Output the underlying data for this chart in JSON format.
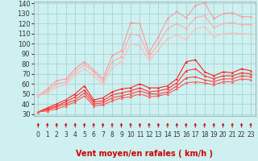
{
  "background_color": "#cff0f0",
  "grid_color": "#aad8d8",
  "xlabel": "Vent moyen/en rafales ( km/h )",
  "ylim": [
    28,
    142
  ],
  "xlim": [
    -0.5,
    23.5
  ],
  "yticks": [
    30,
    40,
    50,
    60,
    70,
    80,
    90,
    100,
    110,
    120,
    130,
    140
  ],
  "xticks": [
    0,
    1,
    2,
    3,
    4,
    5,
    6,
    7,
    8,
    9,
    10,
    11,
    12,
    13,
    14,
    15,
    16,
    17,
    18,
    19,
    20,
    21,
    22,
    23
  ],
  "x": [
    0,
    1,
    2,
    3,
    4,
    5,
    6,
    7,
    8,
    9,
    10,
    11,
    12,
    13,
    14,
    15,
    16,
    17,
    18,
    19,
    20,
    21,
    22,
    23
  ],
  "line1_color": "#ff9999",
  "line1_y": [
    48,
    55,
    63,
    65,
    75,
    82,
    74,
    65,
    88,
    93,
    121,
    120,
    91,
    107,
    125,
    132,
    126,
    138,
    141,
    125,
    130,
    131,
    127,
    127
  ],
  "line2_color": "#ffaaaa",
  "line2_y": [
    48,
    53,
    60,
    62,
    72,
    79,
    72,
    62,
    82,
    87,
    110,
    108,
    87,
    100,
    115,
    120,
    115,
    126,
    128,
    116,
    120,
    121,
    119,
    119
  ],
  "line3_color": "#ffbbbb",
  "line3_y": [
    48,
    51,
    57,
    59,
    69,
    75,
    68,
    59,
    76,
    82,
    100,
    98,
    83,
    94,
    105,
    109,
    104,
    115,
    117,
    107,
    110,
    111,
    110,
    110
  ],
  "line4_color": "#ff2222",
  "line4_y": [
    32,
    36,
    40,
    44,
    50,
    58,
    44,
    46,
    52,
    55,
    56,
    60,
    56,
    56,
    58,
    65,
    82,
    84,
    72,
    68,
    72,
    71,
    75,
    73
  ],
  "line5_color": "#ff3333",
  "line5_y": [
    32,
    35,
    38,
    42,
    47,
    54,
    42,
    43,
    49,
    51,
    53,
    56,
    52,
    53,
    55,
    61,
    73,
    75,
    68,
    65,
    68,
    68,
    71,
    70
  ],
  "line6_color": "#ff4444",
  "line6_y": [
    32,
    34,
    37,
    40,
    44,
    51,
    40,
    41,
    46,
    48,
    50,
    53,
    50,
    50,
    52,
    58,
    66,
    67,
    64,
    62,
    65,
    65,
    68,
    67
  ],
  "line7_color": "#ff5555",
  "line7_y": [
    32,
    33,
    35,
    38,
    42,
    48,
    38,
    39,
    43,
    46,
    47,
    50,
    47,
    48,
    50,
    55,
    61,
    62,
    61,
    59,
    62,
    62,
    65,
    64
  ],
  "arrow_color": "#cc0000",
  "xlabel_color": "#cc0000",
  "xlabel_fontsize": 7,
  "tick_fontsize": 5.5,
  "ytick_fontsize": 6
}
